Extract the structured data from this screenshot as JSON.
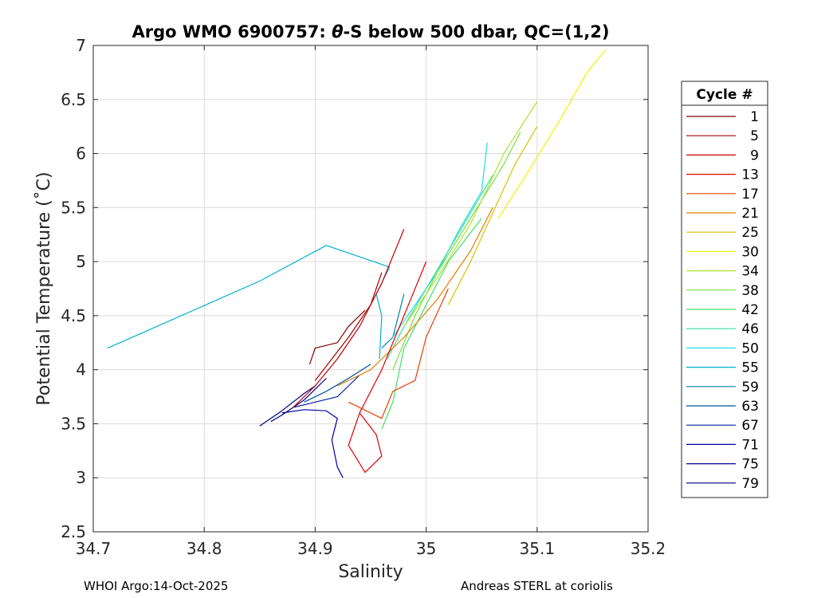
{
  "chart_data": {
    "type": "line",
    "title_parts": [
      "Argo WMO 6900757: ",
      "θ",
      "-S below 500 dbar,  QC=(1,2)"
    ],
    "xlabel": "Salinity",
    "ylabel": "Potential Temperature (˚C)",
    "xlim": [
      34.7,
      35.2
    ],
    "ylim": [
      2.5,
      7
    ],
    "xticks": [
      34.7,
      34.8,
      34.9,
      35,
      35.1,
      35.2
    ],
    "xtick_labels": [
      "34.7",
      "34.8",
      "34.9",
      "35",
      "35.1",
      "35.2"
    ],
    "yticks": [
      2.5,
      3,
      3.5,
      4,
      4.5,
      5,
      5.5,
      6,
      6.5,
      7
    ],
    "ytick_labels": [
      "2.5",
      "3",
      "3.5",
      "4",
      "4.5",
      "5",
      "5.5",
      "6",
      "6.5",
      "7"
    ],
    "grid": true,
    "legend": {
      "title": "Cycle #",
      "placement": "right-outside",
      "entries": [
        {
          "label": "1",
          "color": "#800000"
        },
        {
          "label": "5",
          "color": "#a00000"
        },
        {
          "label": "9",
          "color": "#c00000"
        },
        {
          "label": "13",
          "color": "#e00000"
        },
        {
          "label": "17",
          "color": "#e84000"
        },
        {
          "label": "21",
          "color": "#e08000"
        },
        {
          "label": "25",
          "color": "#d8c000"
        },
        {
          "label": "30",
          "color": "#f0f000"
        },
        {
          "label": "34",
          "color": "#b0e030"
        },
        {
          "label": "38",
          "color": "#70e040"
        },
        {
          "label": "42",
          "color": "#40e060"
        },
        {
          "label": "46",
          "color": "#30e0a0"
        },
        {
          "label": "50",
          "color": "#20e0e0"
        },
        {
          "label": "55",
          "color": "#00b0d0"
        },
        {
          "label": "59",
          "color": "#0080b0"
        },
        {
          "label": "63",
          "color": "#0050a0"
        },
        {
          "label": "67",
          "color": "#0020a0"
        },
        {
          "label": "71",
          "color": "#0000a0"
        },
        {
          "label": "75",
          "color": "#000090"
        },
        {
          "label": "79",
          "color": "#000080"
        }
      ]
    },
    "series": [
      {
        "color": "#000080",
        "points": [
          [
            34.85,
            3.48
          ],
          [
            34.86,
            3.55
          ],
          [
            34.87,
            3.62
          ],
          [
            34.88,
            3.7
          ],
          [
            34.89,
            3.78
          ],
          [
            34.9,
            3.85
          ]
        ]
      },
      {
        "color": "#000090",
        "points": [
          [
            34.86,
            3.52
          ],
          [
            34.87,
            3.58
          ],
          [
            34.88,
            3.65
          ],
          [
            34.89,
            3.72
          ],
          [
            34.9,
            3.82
          ],
          [
            34.91,
            3.92
          ]
        ]
      },
      {
        "color": "#0000a0",
        "points": [
          [
            34.87,
            3.6
          ],
          [
            34.89,
            3.63
          ],
          [
            34.91,
            3.62
          ],
          [
            34.92,
            3.55
          ],
          [
            34.915,
            3.35
          ],
          [
            34.92,
            3.1
          ],
          [
            34.925,
            3.0
          ]
        ]
      },
      {
        "color": "#0020a0",
        "points": [
          [
            34.88,
            3.65
          ],
          [
            34.9,
            3.7
          ],
          [
            34.92,
            3.75
          ],
          [
            34.93,
            3.85
          ],
          [
            34.94,
            3.95
          ]
        ]
      },
      {
        "color": "#0050a0",
        "points": [
          [
            34.89,
            3.7
          ],
          [
            34.91,
            3.8
          ],
          [
            34.93,
            3.92
          ],
          [
            34.95,
            4.05
          ]
        ]
      },
      {
        "color": "#0080b0",
        "points": [
          [
            34.96,
            4.2
          ],
          [
            34.97,
            4.3
          ],
          [
            34.975,
            4.5
          ],
          [
            34.98,
            4.7
          ]
        ]
      },
      {
        "color": "#00b0d0",
        "points": [
          [
            34.713,
            4.2
          ],
          [
            34.85,
            4.82
          ],
          [
            34.91,
            5.15
          ],
          [
            34.967,
            4.95
          ],
          [
            34.955,
            4.7
          ],
          [
            34.96,
            4.5
          ],
          [
            34.958,
            4.1
          ]
        ]
      },
      {
        "color": "#20e0e0",
        "points": [
          [
            34.97,
            4.3
          ],
          [
            34.99,
            4.6
          ],
          [
            35.01,
            4.9
          ],
          [
            35.03,
            5.3
          ],
          [
            35.05,
            5.65
          ],
          [
            35.055,
            6.1
          ]
        ]
      },
      {
        "color": "#30e0a0",
        "points": [
          [
            34.965,
            4.1
          ],
          [
            34.98,
            4.4
          ],
          [
            35.0,
            4.75
          ],
          [
            35.02,
            5.1
          ],
          [
            35.04,
            5.45
          ],
          [
            35.06,
            5.8
          ]
        ]
      },
      {
        "color": "#40e060",
        "points": [
          [
            34.96,
            3.45
          ],
          [
            34.97,
            3.7
          ],
          [
            34.98,
            4.2
          ],
          [
            35.0,
            4.6
          ],
          [
            35.02,
            5.0
          ],
          [
            35.05,
            5.4
          ]
        ]
      },
      {
        "color": "#70e040",
        "points": [
          [
            34.97,
            4.0
          ],
          [
            34.99,
            4.5
          ],
          [
            35.01,
            4.9
          ],
          [
            35.04,
            5.4
          ],
          [
            35.07,
            5.9
          ],
          [
            35.085,
            6.2
          ]
        ]
      },
      {
        "color": "#b0e030",
        "points": [
          [
            34.98,
            4.4
          ],
          [
            35.01,
            4.85
          ],
          [
            35.04,
            5.35
          ],
          [
            35.07,
            6.0
          ],
          [
            35.1,
            6.48
          ]
        ]
      },
      {
        "color": "#f0f000",
        "points": [
          [
            35.065,
            5.4
          ],
          [
            35.09,
            5.8
          ],
          [
            35.12,
            6.3
          ],
          [
            35.145,
            6.75
          ],
          [
            35.162,
            6.96
          ]
        ]
      },
      {
        "color": "#d8c000",
        "points": [
          [
            35.02,
            4.6
          ],
          [
            35.04,
            5.0
          ],
          [
            35.06,
            5.45
          ],
          [
            35.08,
            5.9
          ],
          [
            35.1,
            6.25
          ]
        ]
      },
      {
        "color": "#e08000",
        "points": [
          [
            34.92,
            3.85
          ],
          [
            34.95,
            4.0
          ],
          [
            34.98,
            4.3
          ],
          [
            35.01,
            4.65
          ],
          [
            35.04,
            5.1
          ],
          [
            35.06,
            5.5
          ]
        ]
      },
      {
        "color": "#e84000",
        "points": [
          [
            34.93,
            3.7
          ],
          [
            34.96,
            3.55
          ],
          [
            34.97,
            3.8
          ],
          [
            34.99,
            3.9
          ],
          [
            35.0,
            4.3
          ],
          [
            35.02,
            4.75
          ]
        ]
      },
      {
        "color": "#e00000",
        "points": [
          [
            34.94,
            3.6
          ],
          [
            34.955,
            3.4
          ],
          [
            34.96,
            3.2
          ],
          [
            34.945,
            3.05
          ],
          [
            34.93,
            3.3
          ],
          [
            34.94,
            3.6
          ],
          [
            34.96,
            4.0
          ],
          [
            34.98,
            4.5
          ],
          [
            35.0,
            5.0
          ]
        ]
      },
      {
        "color": "#c00000",
        "points": [
          [
            34.88,
            3.65
          ],
          [
            34.9,
            3.85
          ],
          [
            34.92,
            4.1
          ],
          [
            34.94,
            4.4
          ],
          [
            34.96,
            4.8
          ],
          [
            34.98,
            5.3
          ]
        ]
      },
      {
        "color": "#a00000",
        "points": [
          [
            34.9,
            3.9
          ],
          [
            34.915,
            4.1
          ],
          [
            34.93,
            4.3
          ],
          [
            34.95,
            4.6
          ],
          [
            34.96,
            4.9
          ]
        ]
      },
      {
        "color": "#800000",
        "points": [
          [
            34.895,
            4.05
          ],
          [
            34.9,
            4.2
          ],
          [
            34.92,
            4.25
          ],
          [
            34.93,
            4.4
          ],
          [
            34.945,
            4.55
          ]
        ]
      }
    ]
  },
  "footer": {
    "left": "WHOI Argo:14-Oct-2025",
    "right": "Andreas STERL at coriolis"
  }
}
